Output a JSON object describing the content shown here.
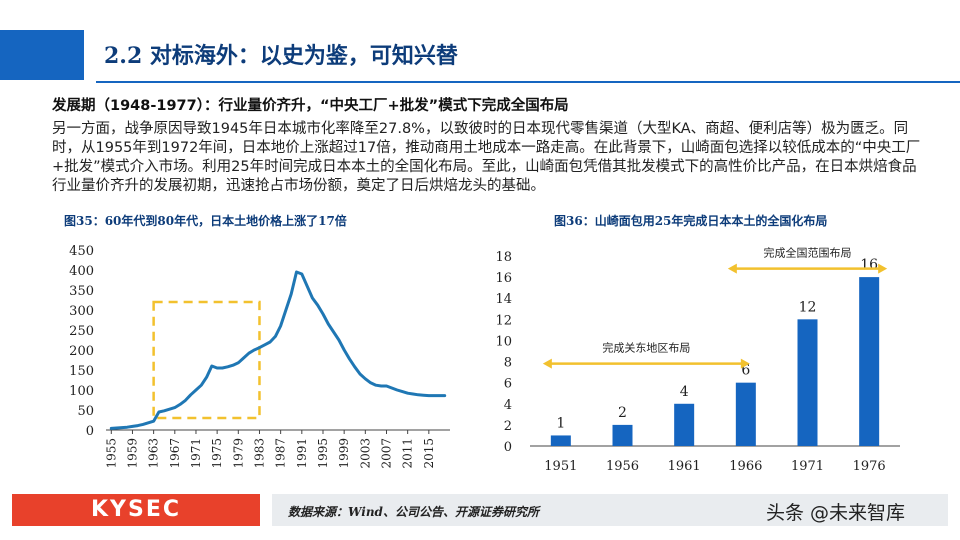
{
  "header": {
    "title": "2.2 对标海外：以史为鉴，可知兴替"
  },
  "section": {
    "heading": "发展期（1948-1977）：行业量价齐升，“中央工厂+批发”模式下完成全国布局",
    "body": "另一方面，战争原因导致1945年日本城市化率降至27.8%，以致彼时的日本现代零售渠道（大型KA、商超、便利店等）极为匮乏。同时，从1955年到1972年间，日本地价上涨超过17倍，推动商用土地成本一路走高。在此背景下，山崎面包选择以较低成本的“中央工厂+批发”模式介入市场。利用25年时间完成日本本土的全国化布局。至此，山崎面包凭借其批发模式下的高性价比产品，在日本烘焙食品行业量价齐升的发展初期，迅速抢占市场份额，奠定了日后烘焙龙头的基础。"
  },
  "figures": {
    "fig35_caption": "图35：60年代到80年代，日本土地价格上涨了17倍",
    "fig36_caption": "图36：山崎面包用25年完成日本本土的全国化布局"
  },
  "chart_data": [
    {
      "type": "line",
      "title": "",
      "xlabel": "",
      "ylabel": "",
      "x_ticks": [
        "1955",
        "1959",
        "1963",
        "1967",
        "1971",
        "1975",
        "1979",
        "1983",
        "1987",
        "1991",
        "1995",
        "1999",
        "2003",
        "2007",
        "2011",
        "2015"
      ],
      "ylim": [
        0,
        450
      ],
      "y_ticks": [
        0,
        50,
        100,
        150,
        200,
        250,
        300,
        350,
        400,
        450
      ],
      "color": "#1f77b4",
      "highlight_range": [
        1963,
        1983
      ],
      "highlight_color": "#f2c12e",
      "series": [
        {
          "x": [
            1955,
            1956,
            1957,
            1958,
            1959,
            1960,
            1961,
            1962,
            1963,
            1964,
            1965,
            1966,
            1967,
            1968,
            1969,
            1970,
            1971,
            1972,
            1973,
            1974,
            1975,
            1976,
            1977,
            1978,
            1979,
            1980,
            1981,
            1982,
            1983,
            1984,
            1985,
            1986,
            1987,
            1988,
            1989,
            1990,
            1991,
            1992,
            1993,
            1994,
            1995,
            1996,
            1997,
            1998,
            1999,
            2000,
            2001,
            2002,
            2003,
            2004,
            2005,
            2006,
            2007,
            2008,
            2009,
            2010,
            2011,
            2012,
            2013,
            2014,
            2015,
            2016,
            2017,
            2018
          ],
          "values": [
            4,
            5,
            6,
            7,
            9,
            11,
            14,
            18,
            22,
            45,
            48,
            52,
            56,
            64,
            74,
            88,
            100,
            112,
            132,
            160,
            155,
            155,
            158,
            162,
            168,
            180,
            192,
            200,
            206,
            213,
            220,
            234,
            260,
            300,
            340,
            395,
            390,
            360,
            330,
            312,
            290,
            265,
            245,
            225,
            200,
            178,
            158,
            140,
            128,
            118,
            112,
            110,
            110,
            105,
            100,
            96,
            92,
            90,
            88,
            87,
            86,
            86,
            86,
            86
          ]
        }
      ]
    },
    {
      "type": "bar",
      "title": "",
      "xlabel": "",
      "ylabel": "",
      "categories": [
        "1951",
        "1956",
        "1961",
        "1966",
        "1971",
        "1976"
      ],
      "ylim": [
        0,
        18
      ],
      "y_ticks": [
        0,
        2,
        4,
        6,
        8,
        10,
        12,
        14,
        16,
        18
      ],
      "color": "#1565c0",
      "series": [
        {
          "values": [
            1,
            2,
            4,
            6,
            12,
            16
          ]
        }
      ],
      "data_labels": [
        "1",
        "2",
        "4",
        "6",
        "12",
        "16"
      ],
      "annotations": [
        {
          "text": "完成关东地区布局",
          "from": "1951",
          "to": "1966",
          "level": 7.8,
          "color": "#f2c12e"
        },
        {
          "text": "完成全国范围布局",
          "from": "1966",
          "to": "1976",
          "level": 16.8,
          "color": "#f2c12e"
        }
      ]
    }
  ],
  "footer": {
    "logo_text": "KYSEC",
    "source": "数据来源：Wind、公司公告、开源证券研究所",
    "watermark": "头条 @未来智库"
  }
}
